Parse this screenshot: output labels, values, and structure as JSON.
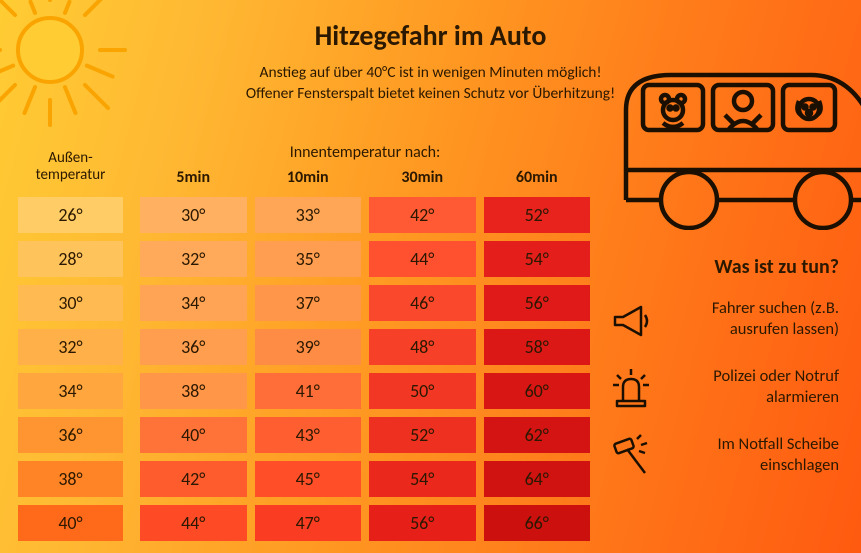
{
  "title": "Hitzegefahr im Auto",
  "subtitle_line1": "Anstieg auf über 40°C ist in wenigen Minuten möglich!",
  "subtitle_line2": "Offener Fensterspalt bietet keinen Schutz vor Überhitzung!",
  "outside_header_line1": "Außen-",
  "outside_header_line2": "temperatur",
  "inner_header": "Innentemperatur nach:",
  "time_labels": [
    "5min",
    "10min",
    "30min",
    "60min"
  ],
  "outside_temps": [
    "26°",
    "28°",
    "30°",
    "32°",
    "34°",
    "36°",
    "38°",
    "40°"
  ],
  "outside_colors": [
    "#ffcc66",
    "#ffc35c",
    "#ffba52",
    "#ffb048",
    "#ffa63e",
    "#ff9530",
    "#ff8426",
    "#ff6a1a"
  ],
  "inner_values": [
    [
      "30°",
      "33°",
      "42°",
      "52°"
    ],
    [
      "32°",
      "35°",
      "44°",
      "54°"
    ],
    [
      "34°",
      "37°",
      "46°",
      "56°"
    ],
    [
      "36°",
      "39°",
      "48°",
      "58°"
    ],
    [
      "38°",
      "41°",
      "50°",
      "60°"
    ],
    [
      "40°",
      "43°",
      "52°",
      "62°"
    ],
    [
      "42°",
      "45°",
      "54°",
      "64°"
    ],
    [
      "44°",
      "47°",
      "56°",
      "66°"
    ]
  ],
  "inner_colors": [
    [
      "#ffb060",
      "#ffa656",
      "#ff5a34",
      "#e8221c"
    ],
    [
      "#ffaa5a",
      "#ff9e50",
      "#ff5030",
      "#e41e1a"
    ],
    [
      "#ffa454",
      "#ff964a",
      "#fa482c",
      "#e01a18"
    ],
    [
      "#ff9e4e",
      "#ff8c44",
      "#f64028",
      "#dc1816"
    ],
    [
      "#ff9648",
      "#ff6e38",
      "#f23824",
      "#d81614"
    ],
    [
      "#ff7238",
      "#ff5e30",
      "#ee3020",
      "#d41412"
    ],
    [
      "#ff5c2e",
      "#ff4e28",
      "#ea281c",
      "#d01210"
    ],
    [
      "#ff4a26",
      "#fa3c22",
      "#e62018",
      "#cc100e"
    ]
  ],
  "actions_title": "Was ist zu tun?",
  "actions": [
    {
      "text": "Fahrer suchen (z.B. ausrufen lassen)"
    },
    {
      "text": "Polizei oder Notruf alarmieren"
    },
    {
      "text": "Im Notfall Scheibe einschlagen"
    }
  ],
  "icon_stroke": "#1a0f00",
  "title_fontsize": 28,
  "sub_fontsize": 15.5,
  "cell_fontsize": 18,
  "background_gradient": [
    "#ffcc33",
    "#ff5a10"
  ]
}
